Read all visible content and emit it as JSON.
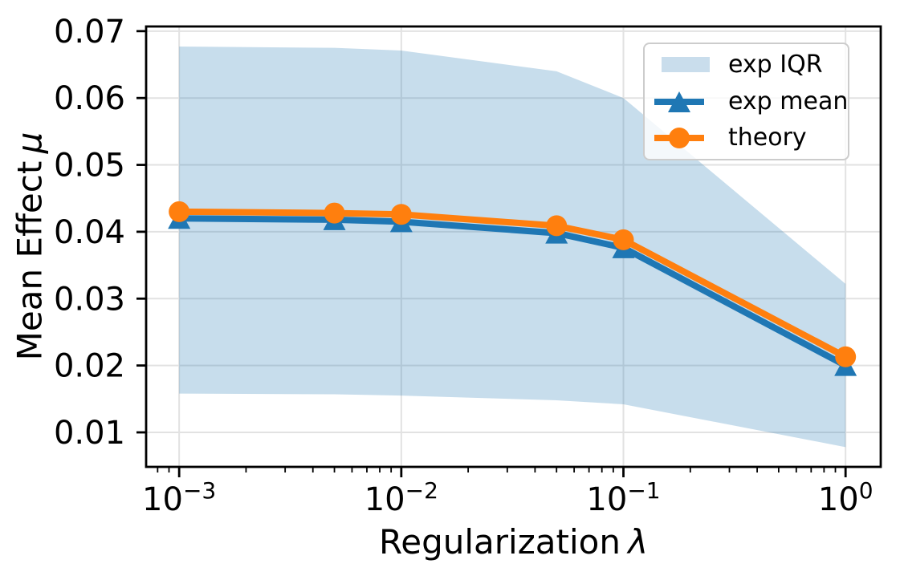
{
  "chart_data": {
    "type": "line",
    "title": "",
    "xlabel": "Regularization λ",
    "ylabel": "Mean Effect μ",
    "xscale": "log",
    "yscale": "linear",
    "grid": true,
    "x": [
      0.001,
      0.005,
      0.01,
      0.05,
      0.1,
      1.0
    ],
    "series": [
      {
        "name": "exp mean",
        "color": "#1f77b4",
        "marker": "triangle",
        "values": [
          0.042,
          0.0418,
          0.0415,
          0.0398,
          0.0376,
          0.02
        ]
      },
      {
        "name": "theory",
        "color": "#ff7f0e",
        "marker": "circle",
        "values": [
          0.043,
          0.0428,
          0.0426,
          0.0409,
          0.0388,
          0.0213
        ]
      }
    ],
    "band": {
      "name": "exp IQR",
      "color": "#1f77b4",
      "opacity": 0.25,
      "upper": [
        0.0677,
        0.0675,
        0.0671,
        0.064,
        0.06,
        0.0322
      ],
      "lower": [
        0.0158,
        0.0157,
        0.0155,
        0.0148,
        0.0142,
        0.0078
      ]
    },
    "xlim": [
      0.00071,
      1.44
    ],
    "ylim": [
      0.00484,
      0.0707
    ],
    "xticks": [
      0.001,
      0.01,
      0.1,
      1
    ],
    "xtick_labels": [
      "10⁻³",
      "10⁻²",
      "10⁻¹",
      "10⁰"
    ],
    "yticks": [
      0.01,
      0.02,
      0.03,
      0.04,
      0.05,
      0.06,
      0.07
    ],
    "ytick_labels": [
      "0.01",
      "0.02",
      "0.03",
      "0.04",
      "0.05",
      "0.06",
      "0.07"
    ],
    "legend": {
      "position": "upper right",
      "entries": [
        "exp IQR",
        "exp mean",
        "theory"
      ]
    }
  },
  "labels": {
    "xlabel_text": "Regularization",
    "xlabel_symbol": "λ",
    "ylabel_text": "Mean Effect",
    "ylabel_symbol": "μ"
  },
  "colors": {
    "blue": "#1f77b4",
    "orange": "#ff7f0e",
    "band_fill": "#c9ddec",
    "grid": "#e2e2e2",
    "spine": "#000000",
    "legend_border": "#cccccc",
    "text": "#000000"
  }
}
